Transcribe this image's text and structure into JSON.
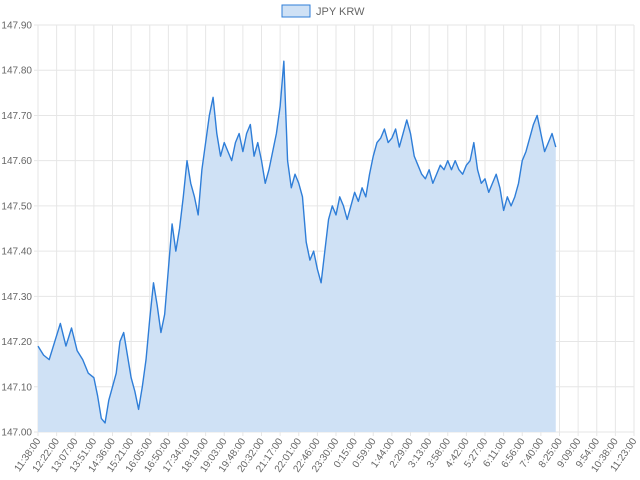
{
  "chart_data": {
    "type": "area",
    "legend_position": "top-center",
    "grid": true,
    "colors": {
      "line": "#2f7ed8",
      "fill": "#cfe1f5",
      "grid": "#e6e6e6",
      "text": "#666666"
    },
    "ylim": [
      147.0,
      147.9
    ],
    "yticks": [
      "147.00",
      "147.10",
      "147.20",
      "147.30",
      "147.40",
      "147.50",
      "147.60",
      "147.70",
      "147.80",
      "147.90"
    ],
    "xticks": [
      "11:38:00",
      "12:22:00",
      "13:07:00",
      "13:51:00",
      "14:36:00",
      "15:21:00",
      "16:05:00",
      "16:50:00",
      "17:34:00",
      "18:19:00",
      "19:03:00",
      "19:48:00",
      "20:32:00",
      "21:17:00",
      "22:01:00",
      "22:46:00",
      "23:30:00",
      "0:15:00",
      "0:59:00",
      "1:44:00",
      "2:29:00",
      "3:13:00",
      "3:58:00",
      "4:42:00",
      "5:27:00",
      "6:11:00",
      "6:56:00",
      "7:40:00",
      "8:25:00",
      "9:09:00",
      "9:54:00",
      "10:38:00",
      "11:23:00"
    ],
    "series": [
      {
        "name": "JPY KRW",
        "points": [
          [
            0,
            147.19
          ],
          [
            0.3,
            147.17
          ],
          [
            0.6,
            147.16
          ],
          [
            0.9,
            147.2
          ],
          [
            1.2,
            147.24
          ],
          [
            1.5,
            147.19
          ],
          [
            1.8,
            147.23
          ],
          [
            2.1,
            147.18
          ],
          [
            2.4,
            147.16
          ],
          [
            2.7,
            147.13
          ],
          [
            3.0,
            147.12
          ],
          [
            3.2,
            147.08
          ],
          [
            3.4,
            147.03
          ],
          [
            3.6,
            147.02
          ],
          [
            3.8,
            147.07
          ],
          [
            4.0,
            147.1
          ],
          [
            4.2,
            147.13
          ],
          [
            4.4,
            147.2
          ],
          [
            4.6,
            147.22
          ],
          [
            4.8,
            147.17
          ],
          [
            5.0,
            147.12
          ],
          [
            5.2,
            147.09
          ],
          [
            5.4,
            147.05
          ],
          [
            5.6,
            147.1
          ],
          [
            5.8,
            147.16
          ],
          [
            6.0,
            147.25
          ],
          [
            6.2,
            147.33
          ],
          [
            6.4,
            147.28
          ],
          [
            6.6,
            147.22
          ],
          [
            6.8,
            147.26
          ],
          [
            7.0,
            147.36
          ],
          [
            7.2,
            147.46
          ],
          [
            7.4,
            147.4
          ],
          [
            7.6,
            147.45
          ],
          [
            7.8,
            147.52
          ],
          [
            8.0,
            147.6
          ],
          [
            8.2,
            147.55
          ],
          [
            8.4,
            147.52
          ],
          [
            8.6,
            147.48
          ],
          [
            8.8,
            147.58
          ],
          [
            9.0,
            147.64
          ],
          [
            9.2,
            147.7
          ],
          [
            9.4,
            147.74
          ],
          [
            9.6,
            147.66
          ],
          [
            9.8,
            147.61
          ],
          [
            10.0,
            147.64
          ],
          [
            10.2,
            147.62
          ],
          [
            10.4,
            147.6
          ],
          [
            10.6,
            147.64
          ],
          [
            10.8,
            147.66
          ],
          [
            11.0,
            147.62
          ],
          [
            11.2,
            147.66
          ],
          [
            11.4,
            147.68
          ],
          [
            11.6,
            147.61
          ],
          [
            11.8,
            147.64
          ],
          [
            12.0,
            147.6
          ],
          [
            12.2,
            147.55
          ],
          [
            12.4,
            147.58
          ],
          [
            12.6,
            147.62
          ],
          [
            12.8,
            147.66
          ],
          [
            13.0,
            147.72
          ],
          [
            13.2,
            147.82
          ],
          [
            13.4,
            147.6
          ],
          [
            13.6,
            147.54
          ],
          [
            13.8,
            147.57
          ],
          [
            14.0,
            147.55
          ],
          [
            14.2,
            147.52
          ],
          [
            14.4,
            147.42
          ],
          [
            14.6,
            147.38
          ],
          [
            14.8,
            147.4
          ],
          [
            15.0,
            147.36
          ],
          [
            15.2,
            147.33
          ],
          [
            15.4,
            147.4
          ],
          [
            15.6,
            147.47
          ],
          [
            15.8,
            147.5
          ],
          [
            16.0,
            147.48
          ],
          [
            16.2,
            147.52
          ],
          [
            16.4,
            147.5
          ],
          [
            16.6,
            147.47
          ],
          [
            16.8,
            147.5
          ],
          [
            17.0,
            147.53
          ],
          [
            17.2,
            147.51
          ],
          [
            17.4,
            147.54
          ],
          [
            17.6,
            147.52
          ],
          [
            17.8,
            147.57
          ],
          [
            18.0,
            147.61
          ],
          [
            18.2,
            147.64
          ],
          [
            18.4,
            147.65
          ],
          [
            18.6,
            147.67
          ],
          [
            18.8,
            147.64
          ],
          [
            19.0,
            147.65
          ],
          [
            19.2,
            147.67
          ],
          [
            19.4,
            147.63
          ],
          [
            19.6,
            147.66
          ],
          [
            19.8,
            147.69
          ],
          [
            20.0,
            147.66
          ],
          [
            20.2,
            147.61
          ],
          [
            20.4,
            147.59
          ],
          [
            20.6,
            147.57
          ],
          [
            20.8,
            147.56
          ],
          [
            21.0,
            147.58
          ],
          [
            21.2,
            147.55
          ],
          [
            21.4,
            147.57
          ],
          [
            21.6,
            147.59
          ],
          [
            21.8,
            147.58
          ],
          [
            22.0,
            147.6
          ],
          [
            22.2,
            147.58
          ],
          [
            22.4,
            147.6
          ],
          [
            22.6,
            147.58
          ],
          [
            22.8,
            147.57
          ],
          [
            23.0,
            147.59
          ],
          [
            23.2,
            147.6
          ],
          [
            23.4,
            147.64
          ],
          [
            23.6,
            147.58
          ],
          [
            23.8,
            147.55
          ],
          [
            24.0,
            147.56
          ],
          [
            24.2,
            147.53
          ],
          [
            24.4,
            147.55
          ],
          [
            24.6,
            147.57
          ],
          [
            24.8,
            147.54
          ],
          [
            25.0,
            147.49
          ],
          [
            25.2,
            147.52
          ],
          [
            25.4,
            147.5
          ],
          [
            25.6,
            147.52
          ],
          [
            25.8,
            147.55
          ],
          [
            26.0,
            147.6
          ],
          [
            26.2,
            147.62
          ],
          [
            26.4,
            147.65
          ],
          [
            26.6,
            147.68
          ],
          [
            26.8,
            147.7
          ],
          [
            27.0,
            147.66
          ],
          [
            27.2,
            147.62
          ],
          [
            27.4,
            147.64
          ],
          [
            27.6,
            147.66
          ],
          [
            27.8,
            147.63
          ]
        ]
      }
    ]
  }
}
